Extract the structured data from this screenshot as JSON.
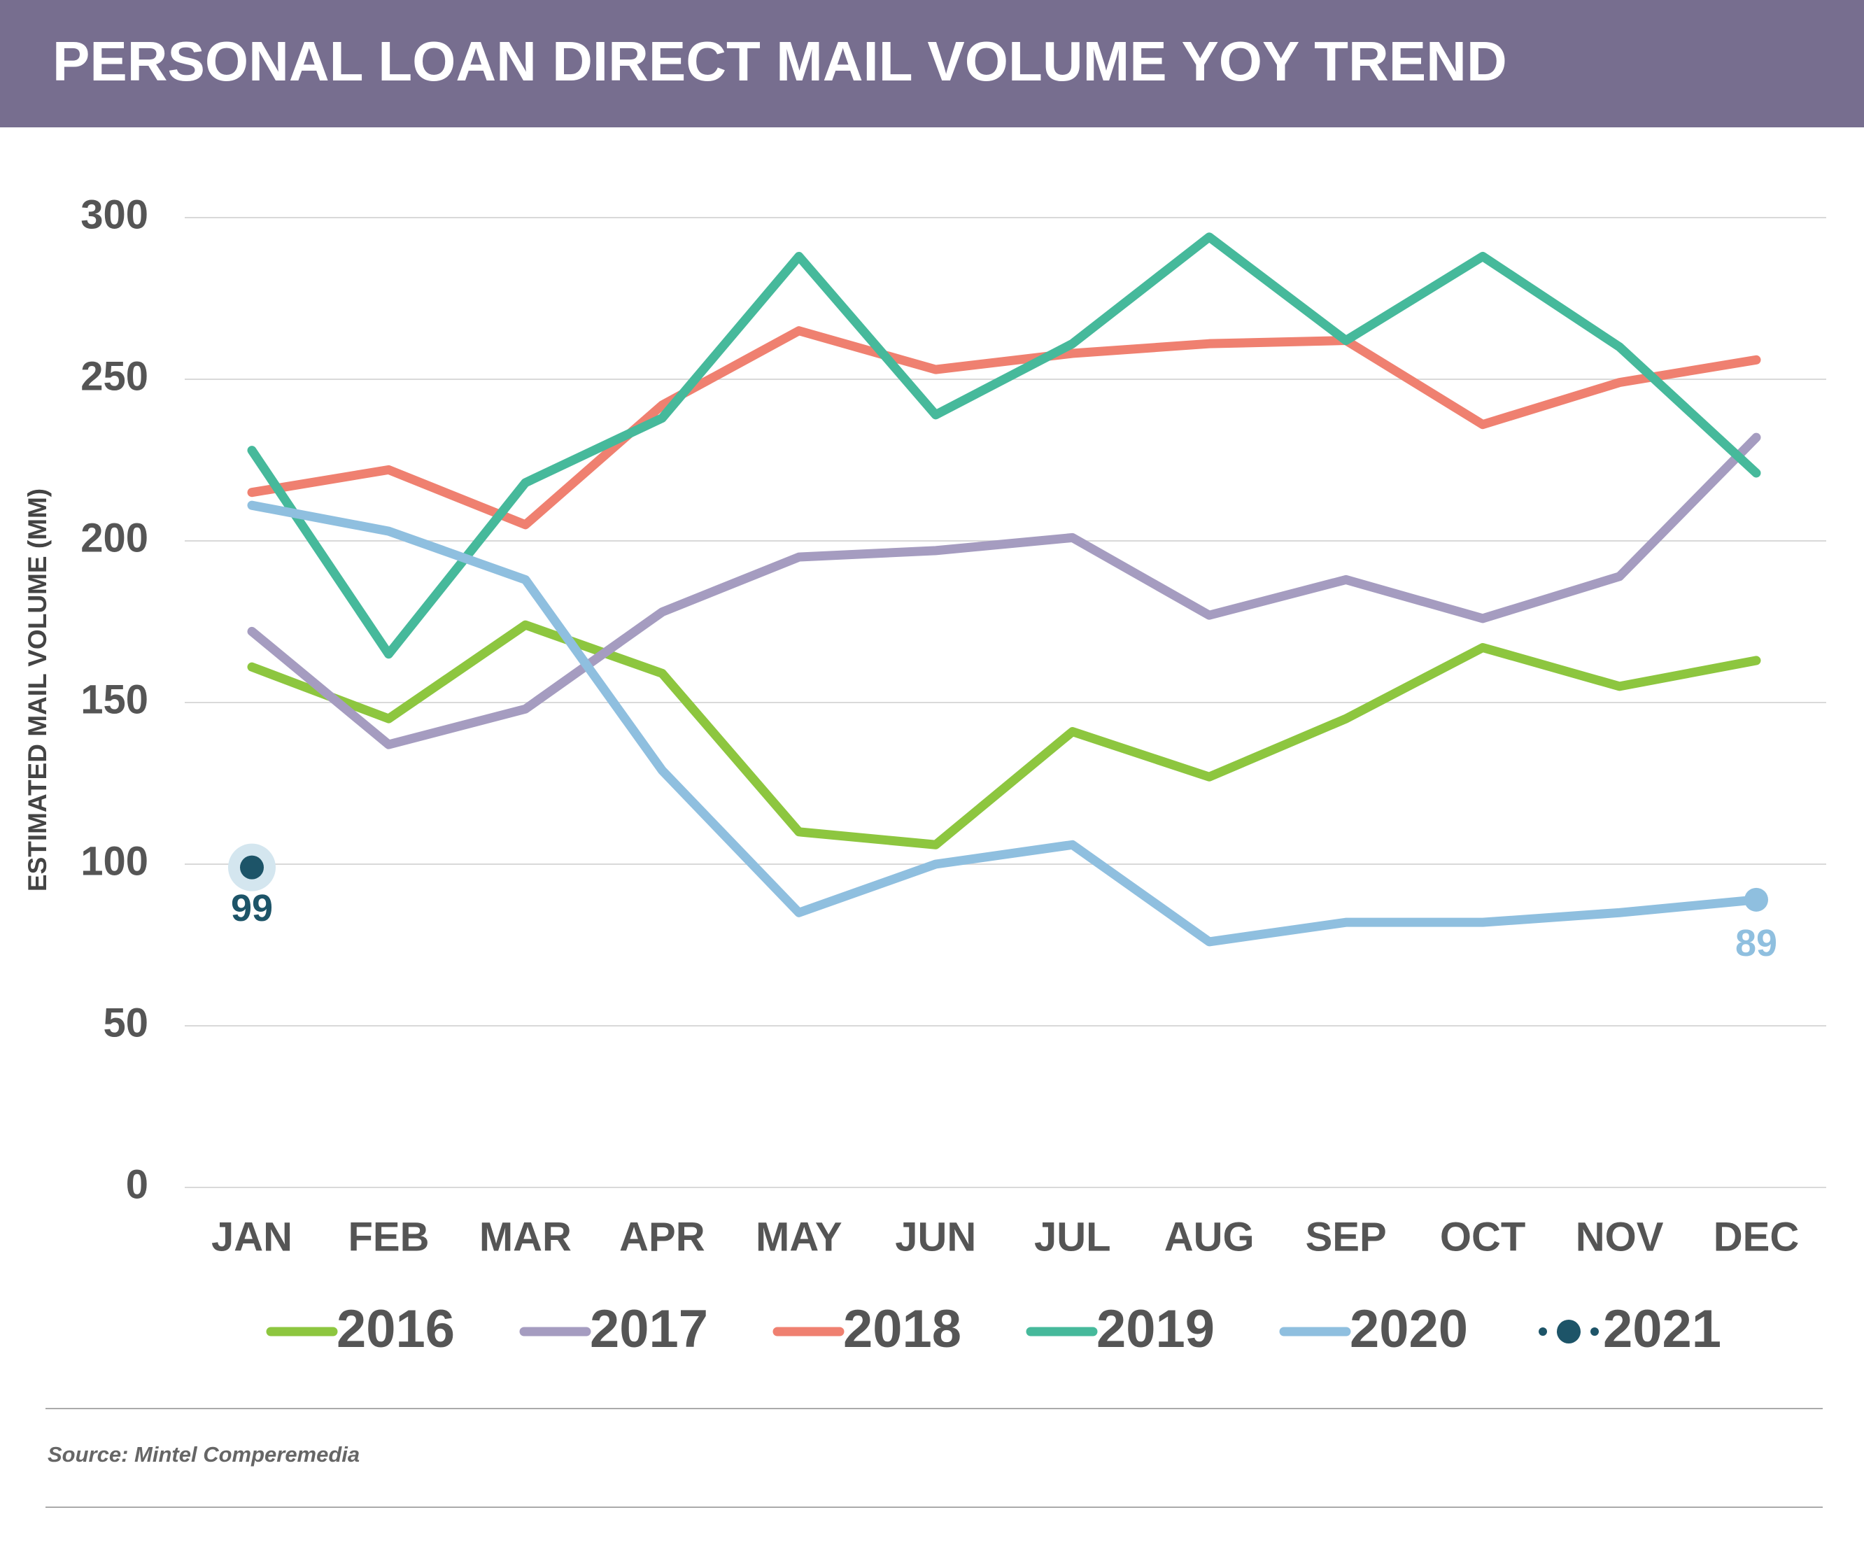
{
  "chart_data": {
    "type": "line",
    "title": "PERSONAL LOAN DIRECT MAIL VOLUME YOY TREND",
    "y_label": "ESTIMATED MAIL VOLUME (MM)",
    "source": "Source: Mintel Comperemedia",
    "categories": [
      "JAN",
      "FEB",
      "MAR",
      "APR",
      "MAY",
      "JUN",
      "JUL",
      "AUG",
      "SEP",
      "OCT",
      "NOV",
      "DEC"
    ],
    "ylim": [
      0,
      300
    ],
    "yticks": [
      0,
      50,
      100,
      150,
      200,
      250,
      300
    ],
    "grid": true,
    "legend": "bottom",
    "series": [
      {
        "name": "2016",
        "color": "#8dc63f",
        "values": [
          161,
          145,
          174,
          159,
          110,
          106,
          141,
          127,
          145,
          167,
          155,
          163
        ]
      },
      {
        "name": "2017",
        "color": "#a59cc0",
        "values": [
          172,
          137,
          148,
          178,
          195,
          197,
          201,
          177,
          188,
          176,
          189,
          232
        ]
      },
      {
        "name": "2018",
        "color": "#ef8070",
        "values": [
          215,
          222,
          205,
          242,
          265,
          253,
          258,
          261,
          262,
          236,
          249,
          256
        ]
      },
      {
        "name": "2019",
        "color": "#46b99b",
        "values": [
          228,
          165,
          218,
          238,
          288,
          239,
          261,
          294,
          262,
          288,
          260,
          221
        ]
      },
      {
        "name": "2020",
        "color": "#8fbfdf",
        "values": [
          211,
          203,
          188,
          129,
          85,
          100,
          106,
          76,
          82,
          82,
          85,
          89
        ],
        "value_labels": [
          null,
          null,
          null,
          null,
          null,
          null,
          null,
          null,
          null,
          null,
          null,
          "89"
        ]
      },
      {
        "name": "2021",
        "color": "#1d5468",
        "values": [
          99,
          null,
          null,
          null,
          null,
          null,
          null,
          null,
          null,
          null,
          null,
          null
        ],
        "value_labels": [
          "99",
          null,
          null,
          null,
          null,
          null,
          null,
          null,
          null,
          null,
          null,
          null
        ]
      }
    ]
  }
}
